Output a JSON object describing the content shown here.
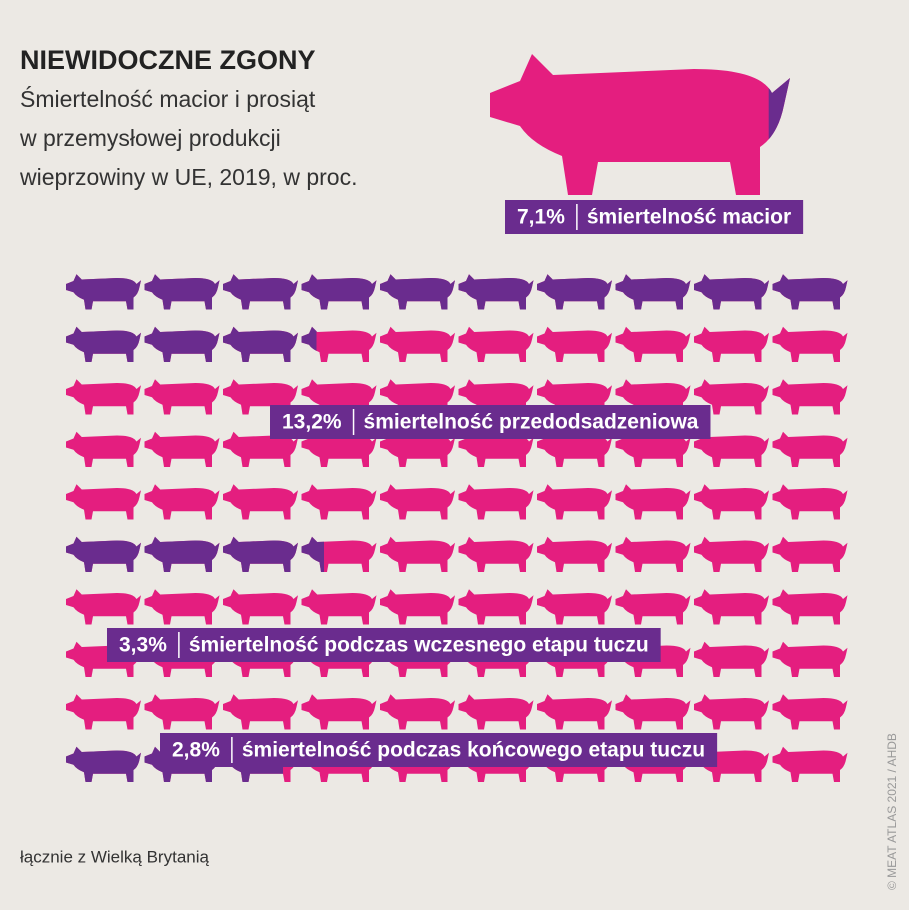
{
  "chart_data": {
    "type": "pictogram",
    "title": "NIEWIDOCZNE ZGONY",
    "subtitle": [
      "Śmiertelność macior i prosiąt",
      "w przemysłowej produkcji",
      "wieprzowiny w UE, 2019, w proc."
    ],
    "highlight_color": "#6a2c8e",
    "base_color": "#e41e7f",
    "sows": {
      "name": "śmiertelność macior",
      "values": [
        7.1
      ],
      "value_labels": [
        "7,1%"
      ]
    },
    "series": [
      {
        "name": "śmiertelność przedodsadzeniowa",
        "values": [
          13.2
        ],
        "value_labels": [
          "13,2%"
        ]
      },
      {
        "name": "śmiertelność podczas wczesnego etapu tuczu",
        "values": [
          3.3
        ],
        "value_labels": [
          "3,3%"
        ]
      },
      {
        "name": "śmiertelność podczas końcowego etapu tuczu",
        "values": [
          2.8
        ],
        "value_labels": [
          "2,8%"
        ]
      }
    ],
    "footnote": "łącznie z Wielką Brytanią",
    "source": "© MEAT ATLAS 2021 / AHDB"
  }
}
